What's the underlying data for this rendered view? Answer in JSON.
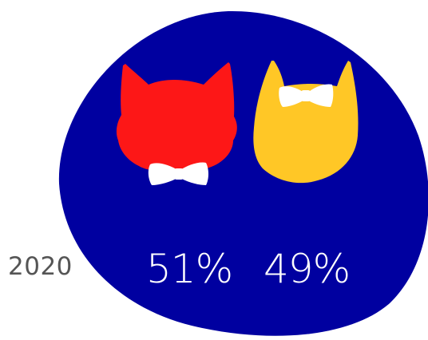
{
  "infographic": {
    "year_label": "2020",
    "left_figure": {
      "percent_label": "51%",
      "percent_value": 51,
      "color": "#fd1717",
      "icon": "red-cat-head-with-bow-tie-icon"
    },
    "right_figure": {
      "percent_label": "49%",
      "percent_value": 49,
      "color": "#ffc726",
      "icon": "yellow-cat-head-with-bow-tie-icon"
    },
    "background_blob_color": "#0000a0",
    "bow_tie_color": "#ffffff"
  }
}
